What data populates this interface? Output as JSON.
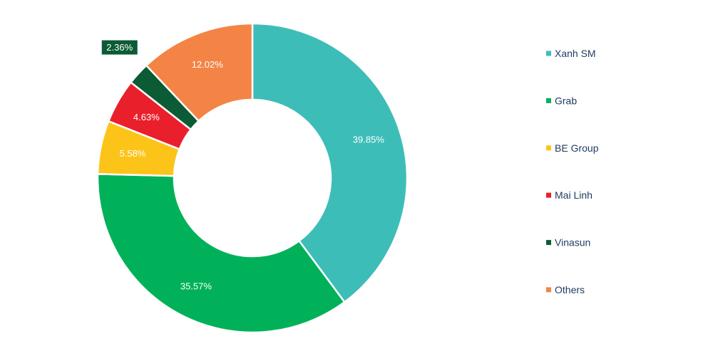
{
  "chart_data": {
    "type": "pie",
    "donut": true,
    "categories": [
      "Xanh SM",
      "Grab",
      "BE Group",
      "Mai Linh",
      "Vinasun",
      "Others"
    ],
    "values": [
      39.85,
      35.57,
      5.58,
      4.63,
      2.36,
      12.02
    ],
    "labels": [
      "39.85%",
      "35.57%",
      "5.58%",
      "4.63%",
      "2.36%",
      "12.02%"
    ],
    "colors": [
      "#3dbdb8",
      "#00b159",
      "#fcc419",
      "#ea1f2c",
      "#0b5b35",
      "#f38445"
    ],
    "legend_position": "right"
  }
}
